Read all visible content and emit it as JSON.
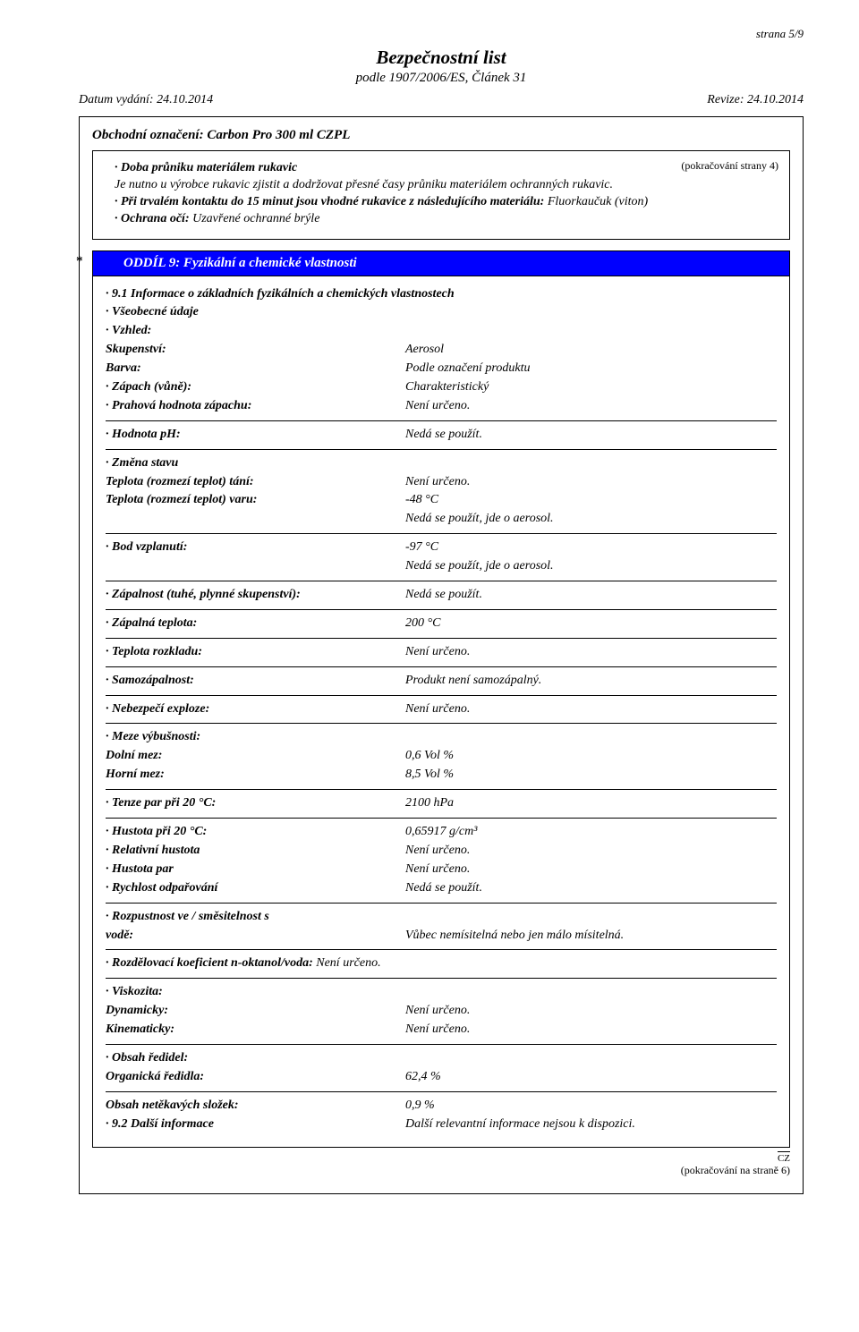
{
  "page_number": "strana 5/9",
  "doc_title": "Bezpečnostní list",
  "doc_subtitle": "podle 1907/2006/ES, Článek 31",
  "issue_date_label": "Datum vydání: 24.10.2014",
  "revision_label": "Revize: 24.10.2014",
  "trade_name_label": "Obchodní označení: Carbon Pro 300 ml CZPL",
  "continuation_top": "(pokračování strany 4)",
  "top_box": {
    "line1_label": "Doba průniku materiálem rukavic",
    "line2": "Je nutno u výrobce rukavic zjistit a dodržovat přesné časy průniku materiálem ochranných rukavic.",
    "line3_label": "Při trvalém kontaktu do 15 minut jsou vhodné rukavice z následujícího materiálu:",
    "line3_value": " Fluorkaučuk (viton)",
    "line4_label": "Ochrana očí:",
    "line4_value": " Uzavřené ochranné brýle"
  },
  "section9": {
    "title": "ODDÍL 9: Fyzikální a chemické vlastnosti",
    "h_9_1": "9.1 Informace o základních fyzikálních a chemických vlastnostech",
    "vseobecne": "Všeobecné údaje",
    "vzhled": "Vzhled:",
    "skupenstvi_l": "Skupenství:",
    "skupenstvi_v": "Aerosol",
    "barva_l": "Barva:",
    "barva_v": "Podle označení produktu",
    "zapach_l": "Zápach (vůně):",
    "zapach_v": "Charakteristický",
    "prah_l": "Prahová hodnota zápachu:",
    "prah_v": "Není určeno.",
    "ph_l": "Hodnota pH:",
    "ph_v": "Nedá se použít.",
    "zmena_l": "Změna stavu",
    "tani_l": "Teplota (rozmezí teplot) tání:",
    "tani_v": "Není určeno.",
    "varu_l": "Teplota (rozmezí teplot) varu:",
    "varu_v1": "-48 °C",
    "varu_v2": "Nedá se použít, jde o aerosol.",
    "vzplan_l": "Bod vzplanutí:",
    "vzplan_v1": "-97 °C",
    "vzplan_v2": "Nedá se použít, jde o aerosol.",
    "zapalnost_l": "Zápalnost (tuhé, plynné skupenství):",
    "zapalnost_v": "Nedá se použít.",
    "zapteplota_l": "Zápalná teplota:",
    "zapteplota_v": "200 °C",
    "rozklad_l": "Teplota rozkladu:",
    "rozklad_v": "Není určeno.",
    "samoz_l": "Samozápalnost:",
    "samoz_v": "Produkt není samozápalný.",
    "exploze_l": "Nebezpečí exploze:",
    "exploze_v": "Není určeno.",
    "meze_l": "Meze výbušnosti:",
    "dolni_l": "Dolní mez:",
    "dolni_v": "0,6 Vol %",
    "horni_l": "Horní mez:",
    "horni_v": "8,5 Vol %",
    "tenze_l": "Tenze par při 20 °C:",
    "tenze_v": "2100 hPa",
    "hust20_l": "Hustota při 20 °C:",
    "hust20_v": "0,65917 g/cm³",
    "relhust_l": "Relativní hustota",
    "relhust_v": "Není určeno.",
    "hustpar_l": "Hustota par",
    "hustpar_v": "Není určeno.",
    "odpar_l": "Rychlost odpařování",
    "odpar_v": "Nedá se použít.",
    "rozpust_l": "Rozpustnost ve / směsitelnost s",
    "vode_l": "vodě:",
    "vode_v": "Vůbec nemísitelná nebo jen málo mísitelná.",
    "koef_l": "Rozdělovací koeficient n-oktanol/voda:",
    "koef_v": " Není určeno.",
    "visk_l": "Viskozita:",
    "dyn_l": "Dynamicky:",
    "dyn_v": "Není určeno.",
    "kin_l": "Kinematicky:",
    "kin_v": "Není určeno.",
    "redidel_l": "Obsah ředidel:",
    "org_l": "Organická ředidla:",
    "org_v": "62,4 %",
    "netek_l": "Obsah netěkavých složek:",
    "netek_v": "0,9 %",
    "h_9_2_l": "9.2 Další informace",
    "h_9_2_v": "Další relevantní informace nejsou k dispozici."
  },
  "footer_cz": "CZ",
  "continuation_bottom": "(pokračování na straně 6)"
}
